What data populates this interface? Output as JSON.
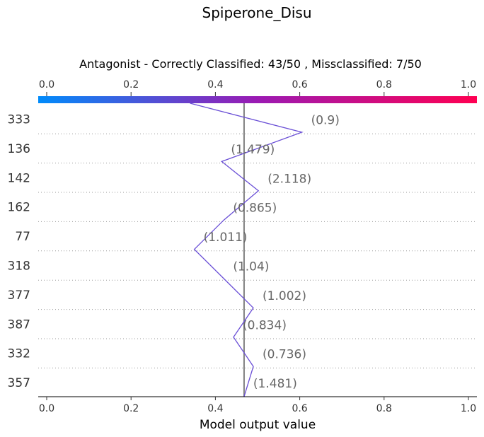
{
  "chart_data": {
    "type": "line",
    "title": "Spiperone_Disu",
    "subtitle": "Antagonist - Correctly Classified: 43/50 , Missclassified: 7/50",
    "xlabel": "Model output value",
    "xlim": [
      0.0,
      1.0
    ],
    "xticks": [
      "0.0",
      "0.2",
      "0.4",
      "0.6",
      "0.8",
      "1.0"
    ],
    "base_value": 0.468,
    "start_value": 0.34,
    "colorbar": {
      "from": "#008bfb",
      "mid": "#9b1ab3",
      "to": "#ff0052"
    },
    "line_color": "#6a4fd6",
    "grid": "dotted horizontal",
    "features": [
      {
        "label": "333",
        "annotation": "(0.9)",
        "value": 0.605
      },
      {
        "label": "136",
        "annotation": "(1.479)",
        "value": 0.415
      },
      {
        "label": "142",
        "annotation": "(2.118)",
        "value": 0.502
      },
      {
        "label": "162",
        "annotation": "(0.865)",
        "value": 0.42
      },
      {
        "label": "77",
        "annotation": "(1.011)",
        "value": 0.35
      },
      {
        "label": "318",
        "annotation": "(1.04)",
        "value": 0.42
      },
      {
        "label": "377",
        "annotation": "(1.002)",
        "value": 0.49
      },
      {
        "label": "387",
        "annotation": "(0.834)",
        "value": 0.443
      },
      {
        "label": "332",
        "annotation": "(0.736)",
        "value": 0.49
      },
      {
        "label": "357",
        "annotation": "(1.481)",
        "value": 0.468
      }
    ]
  }
}
